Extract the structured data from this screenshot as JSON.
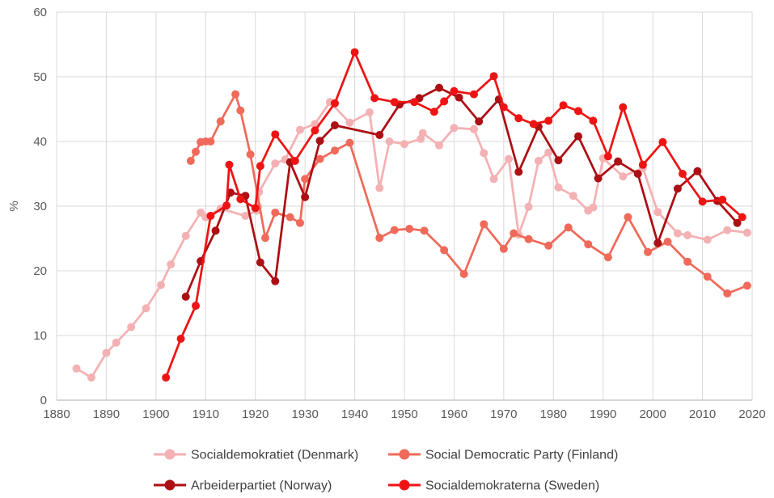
{
  "chart_data": {
    "type": "line",
    "title": "",
    "xlabel": "",
    "ylabel": "%",
    "xlim": [
      1880,
      2020
    ],
    "ylim": [
      0,
      60
    ],
    "x_tick_step": 10,
    "y_tick_step": 10,
    "grid": true,
    "legend_position": "bottom",
    "series": [
      {
        "id": "denmark",
        "name": "Socialdemokratiet (Denmark)",
        "color": "#F4B1B3",
        "points": [
          [
            1884,
            4.9
          ],
          [
            1887,
            3.5
          ],
          [
            1890,
            7.3
          ],
          [
            1892,
            8.9
          ],
          [
            1895,
            11.3
          ],
          [
            1898,
            14.2
          ],
          [
            1901,
            17.8
          ],
          [
            1903,
            21.0
          ],
          [
            1906,
            25.4
          ],
          [
            1909,
            29.0
          ],
          [
            1910,
            28.3
          ],
          [
            1913,
            29.6
          ],
          [
            1918,
            28.5
          ],
          [
            1920.3,
            29.3
          ],
          [
            1920.55,
            29.9
          ],
          [
            1920.75,
            32.2
          ],
          [
            1924,
            36.6
          ],
          [
            1926,
            37.2
          ],
          [
            1929,
            41.8
          ],
          [
            1932,
            42.7
          ],
          [
            1935,
            46.1
          ],
          [
            1939,
            42.9
          ],
          [
            1943,
            44.5
          ],
          [
            1945,
            32.8
          ],
          [
            1947,
            40.0
          ],
          [
            1950,
            39.6
          ],
          [
            1953.3,
            40.4
          ],
          [
            1953.7,
            41.3
          ],
          [
            1957,
            39.4
          ],
          [
            1960,
            42.1
          ],
          [
            1964,
            41.9
          ],
          [
            1966,
            38.2
          ],
          [
            1968,
            34.2
          ],
          [
            1971,
            37.3
          ],
          [
            1973,
            25.6
          ],
          [
            1975,
            29.9
          ],
          [
            1977,
            37.0
          ],
          [
            1979,
            38.3
          ],
          [
            1981,
            32.9
          ],
          [
            1984,
            31.6
          ],
          [
            1987,
            29.3
          ],
          [
            1988,
            29.8
          ],
          [
            1990,
            37.4
          ],
          [
            1994,
            34.6
          ],
          [
            1998,
            35.9
          ],
          [
            2001,
            29.1
          ],
          [
            2005,
            25.8
          ],
          [
            2007,
            25.5
          ],
          [
            2011,
            24.8
          ],
          [
            2015,
            26.3
          ],
          [
            2019,
            25.9
          ]
        ]
      },
      {
        "id": "finland",
        "name": "Social Democratic Party (Finland)",
        "color": "#EF6A5A",
        "points": [
          [
            1907,
            37.0
          ],
          [
            1908,
            38.4
          ],
          [
            1909,
            39.9
          ],
          [
            1910,
            40.0
          ],
          [
            1911,
            40.0
          ],
          [
            1913,
            43.1
          ],
          [
            1916,
            47.3
          ],
          [
            1917,
            44.8
          ],
          [
            1919,
            38.0
          ],
          [
            1922,
            25.1
          ],
          [
            1924,
            29.0
          ],
          [
            1927,
            28.3
          ],
          [
            1929,
            27.4
          ],
          [
            1930,
            34.2
          ],
          [
            1933,
            37.3
          ],
          [
            1936,
            38.6
          ],
          [
            1939,
            39.8
          ],
          [
            1945,
            25.1
          ],
          [
            1948,
            26.3
          ],
          [
            1951,
            26.5
          ],
          [
            1954,
            26.2
          ],
          [
            1958,
            23.2
          ],
          [
            1962,
            19.5
          ],
          [
            1966,
            27.2
          ],
          [
            1970,
            23.4
          ],
          [
            1972,
            25.8
          ],
          [
            1975,
            24.9
          ],
          [
            1979,
            23.9
          ],
          [
            1983,
            26.7
          ],
          [
            1987,
            24.1
          ],
          [
            1991,
            22.1
          ],
          [
            1995,
            28.3
          ],
          [
            1999,
            22.9
          ],
          [
            2003,
            24.5
          ],
          [
            2007,
            21.4
          ],
          [
            2011,
            19.1
          ],
          [
            2015,
            16.5
          ],
          [
            2019,
            17.7
          ]
        ]
      },
      {
        "id": "norway",
        "name": "Arbeiderpartiet (Norway)",
        "color": "#AC0F14",
        "points": [
          [
            1906,
            16.0
          ],
          [
            1909,
            21.5
          ],
          [
            1912,
            26.2
          ],
          [
            1915,
            32.1
          ],
          [
            1918,
            31.6
          ],
          [
            1921,
            21.3
          ],
          [
            1924,
            18.4
          ],
          [
            1927,
            36.8
          ],
          [
            1930,
            31.4
          ],
          [
            1933,
            40.1
          ],
          [
            1936,
            42.5
          ],
          [
            1945,
            41.0
          ],
          [
            1949,
            45.7
          ],
          [
            1953,
            46.7
          ],
          [
            1957,
            48.3
          ],
          [
            1961,
            46.8
          ],
          [
            1965,
            43.1
          ],
          [
            1969,
            46.5
          ],
          [
            1973,
            35.3
          ],
          [
            1977,
            42.3
          ],
          [
            1981,
            37.1
          ],
          [
            1985,
            40.8
          ],
          [
            1989,
            34.3
          ],
          [
            1993,
            36.9
          ],
          [
            1997,
            35.0
          ],
          [
            2001,
            24.3
          ],
          [
            2005,
            32.7
          ],
          [
            2009,
            35.4
          ],
          [
            2013,
            30.8
          ],
          [
            2017,
            27.4
          ]
        ]
      },
      {
        "id": "sweden",
        "name": "Socialdemokraterna (Sweden)",
        "color": "#EE1414",
        "points": [
          [
            1902,
            3.5
          ],
          [
            1905,
            9.5
          ],
          [
            1908,
            14.6
          ],
          [
            1911,
            28.5
          ],
          [
            1914.2,
            30.1
          ],
          [
            1914.75,
            36.4
          ],
          [
            1917,
            31.1
          ],
          [
            1920,
            29.7
          ],
          [
            1921,
            36.2
          ],
          [
            1924,
            41.1
          ],
          [
            1928,
            37.0
          ],
          [
            1932,
            41.7
          ],
          [
            1936,
            45.9
          ],
          [
            1940,
            53.8
          ],
          [
            1944,
            46.7
          ],
          [
            1948,
            46.1
          ],
          [
            1952,
            46.1
          ],
          [
            1956,
            44.6
          ],
          [
            1958,
            46.2
          ],
          [
            1960,
            47.8
          ],
          [
            1964,
            47.3
          ],
          [
            1968,
            50.1
          ],
          [
            1970,
            45.3
          ],
          [
            1973,
            43.6
          ],
          [
            1976,
            42.7
          ],
          [
            1979,
            43.2
          ],
          [
            1982,
            45.6
          ],
          [
            1985,
            44.7
          ],
          [
            1988,
            43.2
          ],
          [
            1991,
            37.7
          ],
          [
            1994,
            45.3
          ],
          [
            1998,
            36.4
          ],
          [
            2002,
            39.9
          ],
          [
            2006,
            35.0
          ],
          [
            2010,
            30.7
          ],
          [
            2014,
            31.0
          ],
          [
            2018,
            28.3
          ]
        ]
      }
    ]
  },
  "styles": {
    "background": "#FFFFFF",
    "gridline_color": "#D9D9D9",
    "axis_line_color": "#BFBFBF",
    "tick_label_color": "#595959",
    "legend_text_color": "#404040"
  }
}
